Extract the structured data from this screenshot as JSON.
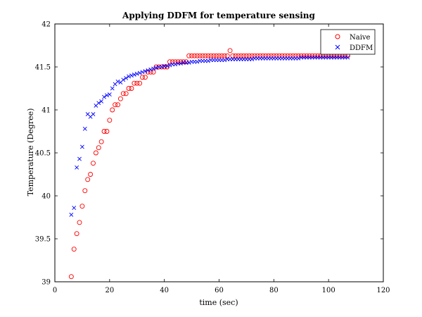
{
  "chart_data": {
    "type": "scatter",
    "title": "Applying DDFM for temperature sensing",
    "xlabel": "time (sec)",
    "ylabel": "Temperature (Degree)",
    "xlim": [
      0,
      120
    ],
    "ylim": [
      39,
      42
    ],
    "xticks": [
      0,
      20,
      40,
      60,
      80,
      100,
      120
    ],
    "yticks": [
      39,
      39.5,
      40,
      40.5,
      41,
      41.5,
      42
    ],
    "xtick_labels": [
      "0",
      "20",
      "40",
      "60",
      "80",
      "100",
      "120"
    ],
    "ytick_labels": [
      "39",
      "39.5",
      "40",
      "40.5",
      "41",
      "41.5",
      "42"
    ],
    "grid": false,
    "legend_position": "top-right",
    "series": [
      {
        "name": "Naive",
        "marker": "circle",
        "color": "#ff0000",
        "points": [
          [
            6,
            39.06
          ],
          [
            7,
            39.38
          ],
          [
            8,
            39.56
          ],
          [
            9,
            39.69
          ],
          [
            10,
            39.88
          ],
          [
            11,
            40.06
          ],
          [
            12,
            40.19
          ],
          [
            13,
            40.25
          ],
          [
            14,
            40.38
          ],
          [
            15,
            40.5
          ],
          [
            16,
            40.56
          ],
          [
            17,
            40.63
          ],
          [
            18,
            40.75
          ],
          [
            19,
            40.75
          ],
          [
            20,
            40.88
          ],
          [
            21,
            41.0
          ],
          [
            22,
            41.06
          ],
          [
            23,
            41.06
          ],
          [
            24,
            41.13
          ],
          [
            25,
            41.19
          ],
          [
            26,
            41.19
          ],
          [
            27,
            41.25
          ],
          [
            28,
            41.25
          ],
          [
            29,
            41.31
          ],
          [
            30,
            41.31
          ],
          [
            31,
            41.31
          ],
          [
            32,
            41.38
          ],
          [
            33,
            41.38
          ],
          [
            34,
            41.44
          ],
          [
            35,
            41.44
          ],
          [
            36,
            41.44
          ],
          [
            37,
            41.5
          ],
          [
            38,
            41.5
          ],
          [
            39,
            41.5
          ],
          [
            40,
            41.5
          ],
          [
            41,
            41.5
          ],
          [
            42,
            41.56
          ],
          [
            43,
            41.56
          ],
          [
            44,
            41.56
          ],
          [
            45,
            41.56
          ],
          [
            46,
            41.56
          ],
          [
            47,
            41.56
          ],
          [
            48,
            41.56
          ],
          [
            49,
            41.63
          ],
          [
            50,
            41.63
          ],
          [
            51,
            41.63
          ],
          [
            52,
            41.63
          ],
          [
            53,
            41.63
          ],
          [
            54,
            41.63
          ],
          [
            55,
            41.63
          ],
          [
            56,
            41.63
          ],
          [
            57,
            41.63
          ],
          [
            58,
            41.63
          ],
          [
            59,
            41.63
          ],
          [
            60,
            41.63
          ],
          [
            61,
            41.63
          ],
          [
            62,
            41.63
          ],
          [
            63,
            41.63
          ],
          [
            64,
            41.69
          ],
          [
            65,
            41.63
          ],
          [
            66,
            41.63
          ],
          [
            67,
            41.63
          ],
          [
            68,
            41.63
          ],
          [
            69,
            41.63
          ],
          [
            70,
            41.63
          ],
          [
            71,
            41.63
          ],
          [
            72,
            41.63
          ],
          [
            73,
            41.63
          ],
          [
            74,
            41.63
          ],
          [
            75,
            41.63
          ],
          [
            76,
            41.63
          ],
          [
            77,
            41.63
          ],
          [
            78,
            41.63
          ],
          [
            79,
            41.63
          ],
          [
            80,
            41.63
          ],
          [
            81,
            41.63
          ],
          [
            82,
            41.63
          ],
          [
            83,
            41.63
          ],
          [
            84,
            41.63
          ],
          [
            85,
            41.63
          ],
          [
            86,
            41.63
          ],
          [
            87,
            41.63
          ],
          [
            88,
            41.63
          ],
          [
            89,
            41.63
          ],
          [
            90,
            41.63
          ],
          [
            91,
            41.63
          ],
          [
            92,
            41.63
          ],
          [
            93,
            41.63
          ],
          [
            94,
            41.63
          ],
          [
            95,
            41.63
          ],
          [
            96,
            41.63
          ],
          [
            97,
            41.63
          ],
          [
            98,
            41.63
          ],
          [
            99,
            41.63
          ],
          [
            100,
            41.63
          ],
          [
            101,
            41.63
          ],
          [
            102,
            41.63
          ],
          [
            103,
            41.63
          ],
          [
            104,
            41.63
          ],
          [
            105,
            41.63
          ],
          [
            106,
            41.63
          ],
          [
            107,
            41.63
          ]
        ]
      },
      {
        "name": "DDFM",
        "marker": "x",
        "color": "#0000ff",
        "points": [
          [
            6,
            39.78
          ],
          [
            7,
            39.86
          ],
          [
            8,
            40.33
          ],
          [
            9,
            40.43
          ],
          [
            10,
            40.57
          ],
          [
            11,
            40.78
          ],
          [
            12,
            40.95
          ],
          [
            13,
            40.92
          ],
          [
            14,
            40.95
          ],
          [
            15,
            41.05
          ],
          [
            16,
            41.08
          ],
          [
            17,
            41.1
          ],
          [
            18,
            41.15
          ],
          [
            19,
            41.17
          ],
          [
            20,
            41.18
          ],
          [
            21,
            41.25
          ],
          [
            22,
            41.3
          ],
          [
            23,
            41.33
          ],
          [
            24,
            41.32
          ],
          [
            25,
            41.35
          ],
          [
            26,
            41.37
          ],
          [
            27,
            41.39
          ],
          [
            28,
            41.4
          ],
          [
            29,
            41.41
          ],
          [
            30,
            41.42
          ],
          [
            31,
            41.43
          ],
          [
            32,
            41.44
          ],
          [
            33,
            41.45
          ],
          [
            34,
            41.46
          ],
          [
            35,
            41.47
          ],
          [
            36,
            41.48
          ],
          [
            37,
            41.49
          ],
          [
            38,
            41.5
          ],
          [
            39,
            41.5
          ],
          [
            40,
            41.51
          ],
          [
            41,
            41.51
          ],
          [
            42,
            41.52
          ],
          [
            43,
            41.53
          ],
          [
            44,
            41.53
          ],
          [
            45,
            41.54
          ],
          [
            46,
            41.54
          ],
          [
            47,
            41.55
          ],
          [
            48,
            41.55
          ],
          [
            49,
            41.55
          ],
          [
            50,
            41.56
          ],
          [
            51,
            41.56
          ],
          [
            52,
            41.56
          ],
          [
            53,
            41.57
          ],
          [
            54,
            41.57
          ],
          [
            55,
            41.57
          ],
          [
            56,
            41.57
          ],
          [
            57,
            41.58
          ],
          [
            58,
            41.58
          ],
          [
            59,
            41.58
          ],
          [
            60,
            41.58
          ],
          [
            61,
            41.58
          ],
          [
            62,
            41.58
          ],
          [
            63,
            41.59
          ],
          [
            64,
            41.59
          ],
          [
            65,
            41.59
          ],
          [
            66,
            41.59
          ],
          [
            67,
            41.59
          ],
          [
            68,
            41.59
          ],
          [
            69,
            41.59
          ],
          [
            70,
            41.59
          ],
          [
            71,
            41.59
          ],
          [
            72,
            41.59
          ],
          [
            73,
            41.6
          ],
          [
            74,
            41.6
          ],
          [
            75,
            41.6
          ],
          [
            76,
            41.6
          ],
          [
            77,
            41.6
          ],
          [
            78,
            41.6
          ],
          [
            79,
            41.6
          ],
          [
            80,
            41.6
          ],
          [
            81,
            41.6
          ],
          [
            82,
            41.6
          ],
          [
            83,
            41.6
          ],
          [
            84,
            41.6
          ],
          [
            85,
            41.6
          ],
          [
            86,
            41.6
          ],
          [
            87,
            41.6
          ],
          [
            88,
            41.6
          ],
          [
            89,
            41.6
          ],
          [
            90,
            41.61
          ],
          [
            91,
            41.61
          ],
          [
            92,
            41.61
          ],
          [
            93,
            41.61
          ],
          [
            94,
            41.61
          ],
          [
            95,
            41.61
          ],
          [
            96,
            41.61
          ],
          [
            97,
            41.61
          ],
          [
            98,
            41.61
          ],
          [
            99,
            41.61
          ],
          [
            100,
            41.61
          ],
          [
            101,
            41.61
          ],
          [
            102,
            41.61
          ],
          [
            103,
            41.61
          ],
          [
            104,
            41.61
          ],
          [
            105,
            41.61
          ],
          [
            106,
            41.61
          ],
          [
            107,
            41.61
          ]
        ]
      }
    ]
  }
}
